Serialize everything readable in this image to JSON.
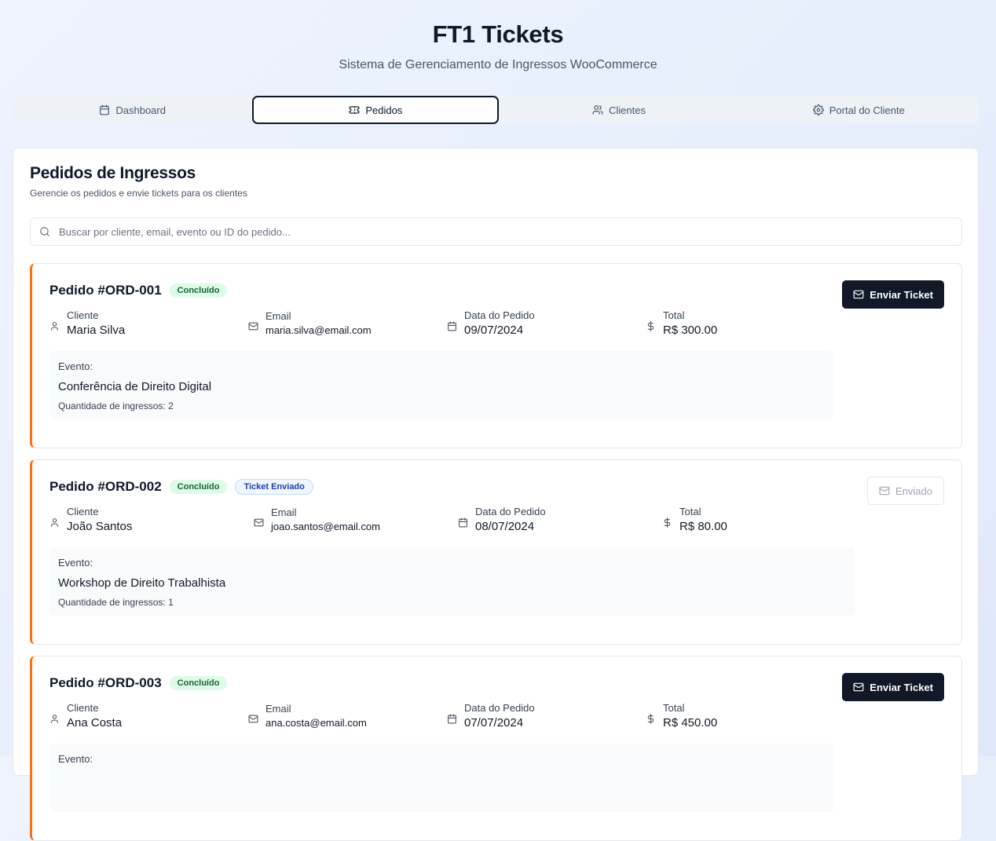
{
  "header": {
    "title": "FT1 Tickets",
    "subtitle": "Sistema de Gerenciamento de Ingressos WooCommerce"
  },
  "tabs": [
    {
      "label": "Dashboard",
      "icon": "calendar-icon",
      "active": false
    },
    {
      "label": "Pedidos",
      "icon": "ticket-icon",
      "active": true
    },
    {
      "label": "Clientes",
      "icon": "users-icon",
      "active": false
    },
    {
      "label": "Portal do Cliente",
      "icon": "gear-icon",
      "active": false
    }
  ],
  "panel": {
    "title": "Pedidos de Ingressos",
    "description": "Gerencie os pedidos e envie tickets para os clientes",
    "search_placeholder": "Buscar por cliente, email, evento ou ID do pedido..."
  },
  "labels": {
    "client": "Cliente",
    "email": "Email",
    "order_date": "Data do Pedido",
    "total": "Total",
    "event": "Evento:"
  },
  "orders": [
    {
      "title": "Pedido #ORD-001",
      "status_badge": "Concluído",
      "ticket_badge": "",
      "client": "Maria Silva",
      "email": "maria.silva@email.com",
      "date": "09/07/2024",
      "total": "R$ 300.00",
      "event": "Conferência de Direito Digital",
      "quantity": "Quantidade de ingressos: 2",
      "button_label": "Enviar Ticket",
      "button_state": "primary"
    },
    {
      "title": "Pedido #ORD-002",
      "status_badge": "Concluído",
      "ticket_badge": "Ticket Enviado",
      "client": "João Santos",
      "email": "joao.santos@email.com",
      "date": "08/07/2024",
      "total": "R$ 80.00",
      "event": "Workshop de Direito Trabalhista",
      "quantity": "Quantidade de ingressos: 1",
      "button_label": "Enviado",
      "button_state": "disabled"
    },
    {
      "title": "Pedido #ORD-003",
      "status_badge": "Concluído",
      "ticket_badge": "",
      "client": "Ana Costa",
      "email": "ana.costa@email.com",
      "date": "07/07/2024",
      "total": "R$ 450.00",
      "event": "",
      "quantity": "",
      "button_label": "Enviar Ticket",
      "button_state": "primary"
    }
  ]
}
